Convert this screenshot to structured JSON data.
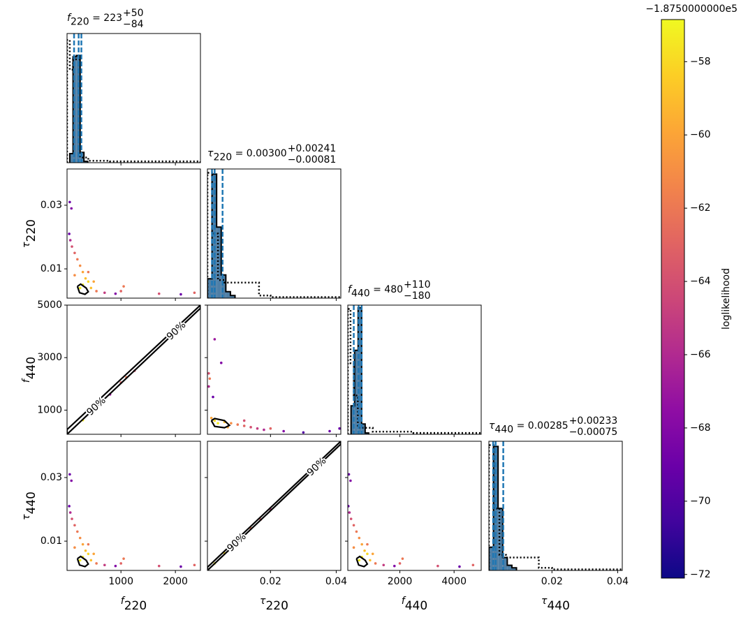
{
  "chart_data": {
    "type": "corner",
    "hist_ylim": [
      0,
      1
    ],
    "parameters": [
      {
        "symbol": "f",
        "sub": "220",
        "lim": [
          10,
          2460
        ],
        "xticks": [
          1000,
          2000
        ],
        "title": {
          "text": " = 223",
          "upper": "+50",
          "lower": "−84"
        },
        "quantiles": [
          139,
          223,
          273
        ],
        "hist": {
          "color": "#4f7fa6",
          "bins": [
            60,
            120,
            180,
            250,
            320,
            390
          ],
          "counts": [
            0.07,
            0.82,
            0.83,
            0.08,
            0.01
          ]
        },
        "prior": {
          "bins": [
            10,
            60,
            120,
            250,
            400,
            800,
            2460
          ],
          "counts": [
            0.95,
            0.72,
            0.8,
            0.04,
            0.015,
            0.01
          ]
        }
      },
      {
        "symbol": "τ",
        "sub": "220",
        "lim": [
          0.0008,
          0.0414
        ],
        "xticks": [
          0.02,
          0.04
        ],
        "yticks": [
          0.01,
          0.03
        ],
        "title": {
          "text": " = 0.00300",
          "upper": "+0.00241",
          "lower": "−0.00081"
        },
        "quantiles": [
          0.00219,
          0.003,
          0.00541
        ],
        "hist": {
          "color": "#4f7fa6",
          "bins": [
            0.0008,
            0.0022,
            0.0036,
            0.005,
            0.0064,
            0.0078,
            0.0092
          ],
          "counts": [
            0.15,
            0.96,
            0.55,
            0.18,
            0.05,
            0.02
          ]
        },
        "prior": {
          "bins": [
            0.0008,
            0.0022,
            0.004,
            0.006,
            0.0165,
            0.02,
            0.0414
          ],
          "counts": [
            0.97,
            0.5,
            0.14,
            0.12,
            0.02,
            0.008
          ]
        }
      },
      {
        "symbol": "f",
        "sub": "440",
        "lim": [
          80,
          5000
        ],
        "xticks": [
          2000,
          4000
        ],
        "yticks": [
          1000,
          3000,
          5000
        ],
        "title": {
          "text": " = 480",
          "upper": "+110",
          "lower": "−180"
        },
        "quantiles": [
          300,
          480,
          590
        ],
        "hist": {
          "color": "#4f7fa6",
          "bins": [
            200,
            330,
            460,
            590,
            720,
            850
          ],
          "counts": [
            0.22,
            0.65,
            0.98,
            0.08,
            0.01
          ]
        },
        "prior": {
          "bins": [
            80,
            180,
            300,
            450,
            1000,
            2500,
            5000
          ],
          "counts": [
            0.97,
            0.55,
            0.3,
            0.05,
            0.02,
            0.01
          ]
        }
      },
      {
        "symbol": "τ",
        "sub": "440",
        "lim": [
          0.0008,
          0.0414
        ],
        "xticks": [
          0.02,
          0.04
        ],
        "yticks": [
          0.01,
          0.03
        ],
        "title": {
          "text": " = 0.00285",
          "upper": "+0.00233",
          "lower": "−0.00075"
        },
        "quantiles": [
          0.0021,
          0.00285,
          0.00518
        ],
        "hist": {
          "color": "#4f7fa6",
          "bins": [
            0.0008,
            0.0022,
            0.0036,
            0.005,
            0.0064,
            0.0078,
            0.0092
          ],
          "counts": [
            0.18,
            0.96,
            0.48,
            0.1,
            0.04,
            0.02
          ]
        },
        "prior": {
          "bins": [
            0.0008,
            0.0022,
            0.004,
            0.006,
            0.016,
            0.02,
            0.0414
          ],
          "counts": [
            0.97,
            0.48,
            0.12,
            0.1,
            0.02,
            0.008
          ]
        }
      }
    ],
    "panels": [
      {
        "type": "scatter",
        "row": 1,
        "col": 0,
        "x": [
          60,
          90,
          50,
          70,
          100,
          150,
          200,
          250,
          300,
          350,
          400,
          300,
          250,
          450,
          550,
          700,
          900,
          1000,
          1050,
          1700,
          2100,
          2350,
          150,
          400,
          500
        ],
        "y": [
          0.031,
          0.029,
          0.021,
          0.019,
          0.017,
          0.015,
          0.013,
          0.011,
          0.009,
          0.007,
          0.006,
          0.005,
          0.004,
          0.004,
          0.003,
          0.0025,
          0.0022,
          0.003,
          0.0045,
          0.0022,
          0.002,
          0.0025,
          0.008,
          0.009,
          0.006
        ],
        "c": [
          -69,
          -68,
          -69,
          -66,
          -64,
          -63,
          -62,
          -61,
          -60,
          -59,
          -58,
          -57.5,
          -57.2,
          -59,
          -62,
          -65,
          -68,
          -63,
          -62,
          -64,
          -69,
          -63,
          -61,
          -62,
          -60
        ],
        "contours": [
          {
            "x": [
              200,
              260,
              360,
              400,
              340,
              240,
              200
            ],
            "y": [
              0.0045,
              0.0052,
              0.004,
              0.0028,
              0.002,
              0.0025,
              0.0045
            ]
          }
        ]
      },
      {
        "type": "scatter",
        "row": 2,
        "col": 0,
        "x": [
          300,
          450,
          600,
          800,
          1000,
          1100,
          1250
        ],
        "y": [
          620,
          900,
          1250,
          1600,
          2050,
          2250,
          2500
        ],
        "c": [
          -57.5,
          -59,
          -61,
          -67,
          -63,
          -62,
          -64
        ],
        "contours": [
          {
            "label": "90%",
            "x": [
              10,
              2460,
              2460,
              10,
              10
            ],
            "y": [
              80,
              4880,
              5000,
              260,
              80
            ]
          }
        ]
      },
      {
        "type": "scatter",
        "row": 2,
        "col": 1,
        "x": [
          0.0012,
          0.0015,
          0.0012,
          0.0025,
          0.005,
          0.003,
          0.002,
          0.003,
          0.004,
          0.006,
          0.008,
          0.01,
          0.012,
          0.014,
          0.016,
          0.018,
          0.02,
          0.024,
          0.03,
          0.038,
          0.041,
          0.007,
          0.012
        ],
        "y": [
          2400,
          2200,
          1900,
          1500,
          2800,
          3700,
          700,
          600,
          500,
          550,
          500,
          450,
          400,
          350,
          300,
          250,
          300,
          200,
          150,
          200,
          300,
          350,
          600
        ],
        "c": [
          -64,
          -62,
          -66,
          -69,
          -68,
          -67,
          -60,
          -58,
          -57.3,
          -59,
          -61,
          -62,
          -63,
          -64,
          -65,
          -66,
          -63,
          -68,
          -70,
          -69,
          -69,
          -60,
          -64
        ],
        "contours": [
          {
            "x": [
              0.002,
              0.003,
              0.006,
              0.0075,
              0.006,
              0.003,
              0.002
            ],
            "y": [
              600,
              680,
              600,
              420,
              330,
              380,
              600
            ]
          }
        ]
      },
      {
        "type": "scatter",
        "row": 3,
        "col": 0,
        "x": [
          60,
          90,
          50,
          70,
          100,
          150,
          200,
          250,
          300,
          350,
          400,
          300,
          250,
          450,
          550,
          700,
          900,
          1000,
          1050,
          1700,
          2100,
          2350,
          150,
          400,
          500
        ],
        "y": [
          0.031,
          0.029,
          0.021,
          0.019,
          0.017,
          0.015,
          0.013,
          0.011,
          0.009,
          0.007,
          0.006,
          0.005,
          0.004,
          0.004,
          0.003,
          0.0025,
          0.0022,
          0.003,
          0.0045,
          0.0022,
          0.002,
          0.0025,
          0.008,
          0.009,
          0.006
        ],
        "c": [
          -69,
          -68,
          -69,
          -66,
          -64,
          -63,
          -62,
          -61,
          -60,
          -59,
          -58,
          -57.5,
          -57.2,
          -59,
          -62,
          -65,
          -68,
          -63,
          -62,
          -64,
          -69,
          -63,
          -61,
          -62,
          -60
        ],
        "contours": [
          {
            "x": [
              200,
              260,
              360,
              400,
              340,
              240,
              200
            ],
            "y": [
              0.0045,
              0.0052,
              0.004,
              0.0028,
              0.002,
              0.0025,
              0.0045
            ]
          }
        ]
      },
      {
        "type": "scatter",
        "row": 3,
        "col": 1,
        "x": [
          0.003,
          0.006,
          0.01,
          0.014,
          0.017,
          0.02
        ],
        "y": [
          0.003,
          0.0062,
          0.0098,
          0.014,
          0.0168,
          0.02
        ],
        "c": [
          -57.5,
          -58,
          -60,
          -62,
          -63,
          -65
        ],
        "contours": [
          {
            "label": "90%",
            "x": [
              0.0008,
              0.0414,
              0.0414,
              0.0008,
              0.0008
            ],
            "y": [
              0.0008,
              0.0405,
              0.0414,
              0.0018,
              0.0008
            ]
          }
        ]
      },
      {
        "type": "scatter",
        "row": 3,
        "col": 2,
        "x": [
          120,
          180,
          100,
          140,
          200,
          300,
          400,
          500,
          600,
          700,
          800,
          600,
          500,
          900,
          1100,
          1400,
          1800,
          2000,
          2100,
          3400,
          4200,
          4700,
          300,
          800,
          1000
        ],
        "y": [
          0.031,
          0.029,
          0.021,
          0.019,
          0.017,
          0.015,
          0.013,
          0.011,
          0.009,
          0.007,
          0.006,
          0.005,
          0.004,
          0.004,
          0.003,
          0.0025,
          0.0022,
          0.003,
          0.0045,
          0.0022,
          0.002,
          0.0025,
          0.008,
          0.009,
          0.006
        ],
        "c": [
          -69,
          -68,
          -69,
          -66,
          -64,
          -63,
          -62,
          -61,
          -60,
          -59,
          -58,
          -57.5,
          -57.2,
          -59,
          -62,
          -65,
          -68,
          -63,
          -62,
          -64,
          -69,
          -63,
          -61,
          -62,
          -60
        ],
        "contours": [
          {
            "x": [
              400,
              520,
              720,
              800,
              680,
              480,
              400
            ],
            "y": [
              0.0045,
              0.0052,
              0.004,
              0.0028,
              0.002,
              0.0025,
              0.0045
            ]
          }
        ]
      }
    ],
    "colorbar": {
      "label": "loglikelihood",
      "offset": "−1.8750000000e5",
      "colormap": "plasma",
      "lim": [
        -72.1,
        -56.85
      ],
      "ticks": [
        {
          "value": -72,
          "label": "−72"
        },
        {
          "value": -70,
          "label": "−70"
        },
        {
          "value": -68,
          "label": "−68"
        },
        {
          "value": -66,
          "label": "−66"
        },
        {
          "value": -64,
          "label": "−64"
        },
        {
          "value": -62,
          "label": "−62"
        },
        {
          "value": -60,
          "label": "−60"
        },
        {
          "value": -58,
          "label": "−58"
        }
      ]
    }
  }
}
